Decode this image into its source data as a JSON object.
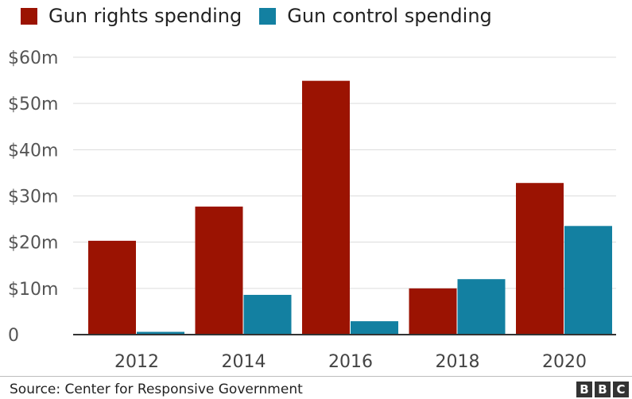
{
  "legend": {
    "items": [
      {
        "label": "Gun rights spending",
        "color": "#9b1302"
      },
      {
        "label": "Gun control spending",
        "color": "#1380a1"
      }
    ]
  },
  "source": "Source: Center for Responsive Government",
  "logo": [
    "B",
    "B",
    "C"
  ],
  "chart_data": {
    "type": "bar",
    "categories": [
      "2012",
      "2014",
      "2016",
      "2018",
      "2020"
    ],
    "series": [
      {
        "name": "Gun rights spending",
        "color": "#9b1302",
        "values": [
          20.3,
          27.7,
          54.9,
          10.0,
          32.8
        ]
      },
      {
        "name": "Gun control spending",
        "color": "#1380a1",
        "values": [
          0.6,
          8.6,
          2.9,
          12.0,
          23.5
        ]
      }
    ],
    "ylim": [
      0,
      60
    ],
    "yticks": [
      0,
      10,
      20,
      30,
      40,
      50,
      60
    ],
    "ytick_labels": [
      "0",
      "$10m",
      "$20m",
      "$30m",
      "$40m",
      "$50m",
      "$60m"
    ],
    "grid": true,
    "legend_position": "top-left",
    "title": "",
    "xlabel": "",
    "ylabel": ""
  }
}
